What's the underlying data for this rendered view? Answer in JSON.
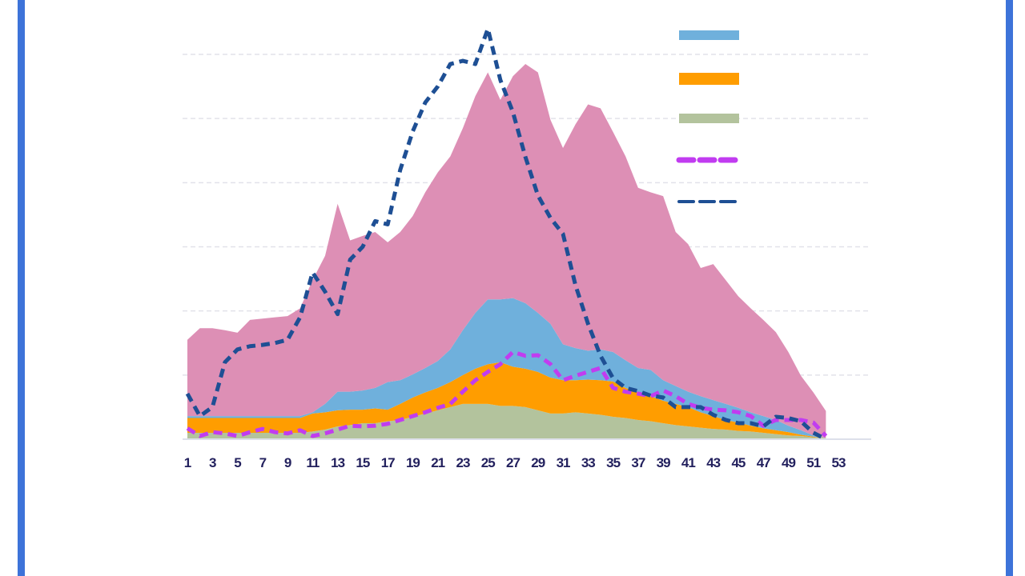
{
  "chart_data": {
    "type": "area",
    "stacked": true,
    "title": "",
    "xlabel": "",
    "ylabel": "",
    "x": [
      1,
      2,
      3,
      4,
      5,
      6,
      7,
      8,
      9,
      10,
      11,
      12,
      13,
      14,
      15,
      16,
      17,
      18,
      19,
      20,
      21,
      22,
      23,
      24,
      25,
      26,
      27,
      28,
      29,
      30,
      31,
      32,
      33,
      34,
      35,
      36,
      37,
      38,
      39,
      40,
      41,
      42,
      43,
      44,
      45,
      46,
      47,
      48,
      49,
      50,
      51,
      52
    ],
    "x_tick_labels": [
      "1",
      "3",
      "5",
      "7",
      "9",
      "11",
      "13",
      "15",
      "17",
      "19",
      "21",
      "23",
      "25",
      "27",
      "29",
      "31",
      "33",
      "35",
      "37",
      "39",
      "41",
      "43",
      "45",
      "47",
      "49",
      "51",
      "53"
    ],
    "xlim": [
      1,
      53
    ],
    "ylim": [
      0,
      6
    ],
    "y_tick_labels_shown": false,
    "grid": "horizontal dashed",
    "legend": "right, swatches only (no text)",
    "series": [
      {
        "kind": "area",
        "color": "#b3c39d",
        "values": [
          0.1,
          0.1,
          0.1,
          0.1,
          0.1,
          0.1,
          0.1,
          0.1,
          0.1,
          0.1,
          0.12,
          0.15,
          0.2,
          0.22,
          0.25,
          0.25,
          0.28,
          0.3,
          0.35,
          0.4,
          0.45,
          0.5,
          0.55,
          0.55,
          0.55,
          0.52,
          0.52,
          0.5,
          0.45,
          0.4,
          0.4,
          0.42,
          0.4,
          0.38,
          0.35,
          0.33,
          0.3,
          0.28,
          0.25,
          0.22,
          0.2,
          0.18,
          0.16,
          0.15,
          0.13,
          0.12,
          0.1,
          0.08,
          0.06,
          0.05,
          0.03,
          0.02
        ]
      },
      {
        "kind": "area",
        "color": "#ff9d00",
        "values": [
          0.23,
          0.23,
          0.23,
          0.23,
          0.23,
          0.23,
          0.23,
          0.23,
          0.23,
          0.23,
          0.28,
          0.27,
          0.25,
          0.24,
          0.21,
          0.23,
          0.18,
          0.25,
          0.3,
          0.33,
          0.35,
          0.39,
          0.45,
          0.55,
          0.62,
          0.68,
          0.61,
          0.6,
          0.6,
          0.56,
          0.52,
          0.5,
          0.53,
          0.54,
          0.55,
          0.47,
          0.43,
          0.39,
          0.35,
          0.33,
          0.3,
          0.24,
          0.2,
          0.15,
          0.13,
          0.09,
          0.07,
          0.06,
          0.05,
          0.02,
          0.01,
          0
        ]
      },
      {
        "kind": "area",
        "color": "#6fb0dc",
        "values": [
          0.03,
          0.03,
          0.03,
          0.03,
          0.03,
          0.03,
          0.03,
          0.03,
          0.03,
          0.03,
          0.02,
          0.13,
          0.29,
          0.28,
          0.3,
          0.32,
          0.43,
          0.37,
          0.36,
          0.38,
          0.42,
          0.51,
          0.7,
          0.87,
          1.01,
          0.98,
          1.07,
          1.02,
          0.92,
          0.84,
          0.56,
          0.5,
          0.45,
          0.48,
          0.46,
          0.43,
          0.38,
          0.41,
          0.32,
          0.28,
          0.24,
          0.25,
          0.25,
          0.25,
          0.23,
          0.21,
          0.19,
          0.16,
          0.1,
          0.07,
          0.02,
          0
        ]
      },
      {
        "kind": "area",
        "color": "#dd8fb5",
        "values": [
          1.19,
          1.37,
          1.37,
          1.34,
          1.3,
          1.5,
          1.52,
          1.54,
          1.56,
          1.68,
          2.06,
          2.31,
          2.93,
          2.36,
          2.41,
          2.43,
          2.18,
          2.31,
          2.47,
          2.74,
          2.94,
          3.01,
          3.15,
          3.38,
          3.54,
          3.11,
          3.46,
          3.73,
          3.75,
          3.18,
          3.06,
          3.49,
          3.84,
          3.76,
          3.43,
          3.18,
          2.81,
          2.77,
          2.87,
          2.4,
          2.3,
          2.0,
          2.12,
          1.93,
          1.74,
          1.62,
          1.5,
          1.37,
          1.15,
          0.85,
          0.67,
          0.42
        ]
      },
      {
        "kind": "dashed-line",
        "color": "#c13cf0",
        "values": [
          0.17,
          0.05,
          0.11,
          0.09,
          0.05,
          0.11,
          0.16,
          0.11,
          0.09,
          0.14,
          0.05,
          0.09,
          0.15,
          0.21,
          0.2,
          0.21,
          0.24,
          0.3,
          0.36,
          0.42,
          0.49,
          0.55,
          0.74,
          0.92,
          1.05,
          1.17,
          1.36,
          1.3,
          1.31,
          1.17,
          0.92,
          0.99,
          1.05,
          1.11,
          0.8,
          0.74,
          0.71,
          0.67,
          0.76,
          0.67,
          0.55,
          0.49,
          0.46,
          0.45,
          0.42,
          0.36,
          0.21,
          0.3,
          0.3,
          0.3,
          0.26,
          0.05
        ]
      },
      {
        "kind": "dashed-line",
        "color": "#1e4f94",
        "values": [
          0.71,
          0.36,
          0.5,
          1.2,
          1.4,
          1.45,
          1.47,
          1.5,
          1.55,
          1.9,
          2.6,
          2.3,
          1.95,
          2.8,
          3.0,
          3.4,
          3.35,
          4.2,
          4.8,
          5.25,
          5.5,
          5.85,
          5.9,
          5.85,
          6.4,
          5.6,
          5.1,
          4.4,
          3.8,
          3.45,
          3.2,
          2.4,
          1.8,
          1.3,
          0.95,
          0.8,
          0.75,
          0.68,
          0.65,
          0.5,
          0.5,
          0.5,
          0.38,
          0.3,
          0.25,
          0.25,
          0.2,
          0.35,
          0.33,
          0.28,
          0.1,
          0.0
        ]
      }
    ]
  }
}
